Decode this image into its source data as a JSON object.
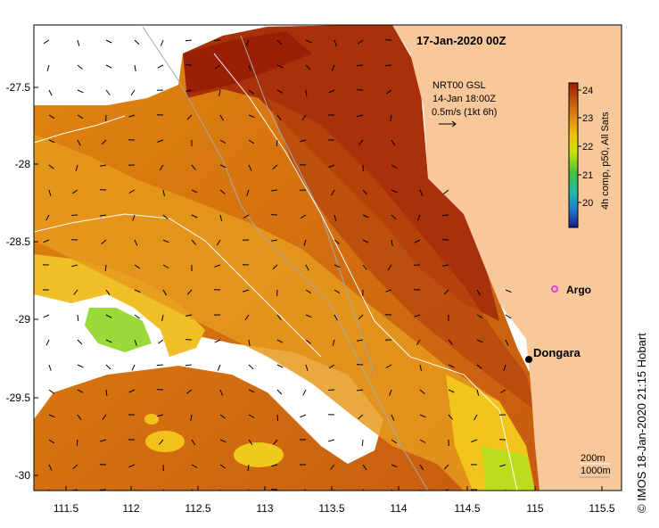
{
  "title": "17-Jan-2020 00Z",
  "current_legend": {
    "source": "NRT00 GSL",
    "time": "14-Jan 18:00Z",
    "scale_text": "0.5m/s (1kt 6h)"
  },
  "colorbar": {
    "label": "4h comp, p50, All Sats",
    "ticks": [
      "20",
      "21",
      "22",
      "23",
      "24"
    ],
    "colors": [
      "#1a1a8c",
      "#1f78d6",
      "#1fb9b0",
      "#44c23b",
      "#c8e400",
      "#f2c200",
      "#e08a10",
      "#c2540e",
      "#9e1f04"
    ]
  },
  "x_ticks": [
    "111.5",
    "112",
    "112.5",
    "113",
    "113.5",
    "114",
    "114.5",
    "115",
    "115.5"
  ],
  "y_ticks": [
    "-27.5",
    "-28",
    "-28.5",
    "-29",
    "-29.5",
    "-30"
  ],
  "places": {
    "argo": "Argo",
    "dongara": "Dongara"
  },
  "contour_legend": {
    "line1": "200m",
    "line2": "1000m"
  },
  "credit": "© IMOS 18-Jan-2020 21:15 Hobart",
  "colors": {
    "land": "#f9c89a",
    "no_data": "#ffffff",
    "argo": "#e03ee0",
    "contour_200": "#ffffff",
    "contour_1000": "#a0a0a0"
  }
}
